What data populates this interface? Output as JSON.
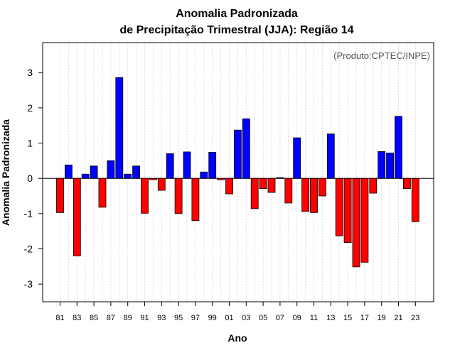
{
  "chart_data": {
    "type": "bar",
    "title": "Anomalia Padronizada",
    "subtitle": "de Precipitação Trimestral (JJA): Região 14",
    "xlabel": "Ano",
    "ylabel": "Anomalia Padronizada",
    "annotation": "(Produto:CPTEC/INPE)",
    "ylim": [
      -3.5,
      3.85
    ],
    "yticks": [
      "-3",
      "-2",
      "-1",
      "0",
      "1",
      "2",
      "3"
    ],
    "ytick_values": [
      -3,
      -2,
      -1,
      0,
      1,
      2,
      3
    ],
    "grid": "vertical dotted",
    "positive_color": "#0000ff",
    "negative_color": "#ff0000",
    "categories": [
      "81",
      "82",
      "83",
      "84",
      "85",
      "86",
      "87",
      "88",
      "89",
      "90",
      "91",
      "92",
      "93",
      "94",
      "95",
      "96",
      "97",
      "98",
      "99",
      "00",
      "01",
      "02",
      "03",
      "04",
      "05",
      "06",
      "07",
      "08",
      "09",
      "10",
      "11",
      "12",
      "13",
      "14",
      "15",
      "16",
      "17",
      "18",
      "19",
      "20",
      "21",
      "22",
      "23"
    ],
    "xtick_labels": [
      "81",
      "83",
      "85",
      "87",
      "89",
      "91",
      "93",
      "95",
      "97",
      "99",
      "01",
      "03",
      "05",
      "07",
      "09",
      "11",
      "13",
      "15",
      "17",
      "19",
      "21",
      "23"
    ],
    "values": [
      -0.97,
      0.38,
      -2.2,
      0.12,
      0.35,
      -0.82,
      0.5,
      2.86,
      0.12,
      0.35,
      -0.99,
      -0.04,
      -0.34,
      0.7,
      -1.0,
      0.75,
      -1.2,
      0.18,
      0.74,
      -0.04,
      -0.44,
      1.37,
      1.69,
      -0.86,
      -0.29,
      -0.4,
      0.02,
      -0.7,
      1.15,
      -0.94,
      -0.97,
      -0.5,
      1.26,
      -1.63,
      -1.82,
      -2.51,
      -2.38,
      -0.42,
      0.76,
      0.72,
      1.76,
      -0.29,
      -1.23
    ]
  }
}
